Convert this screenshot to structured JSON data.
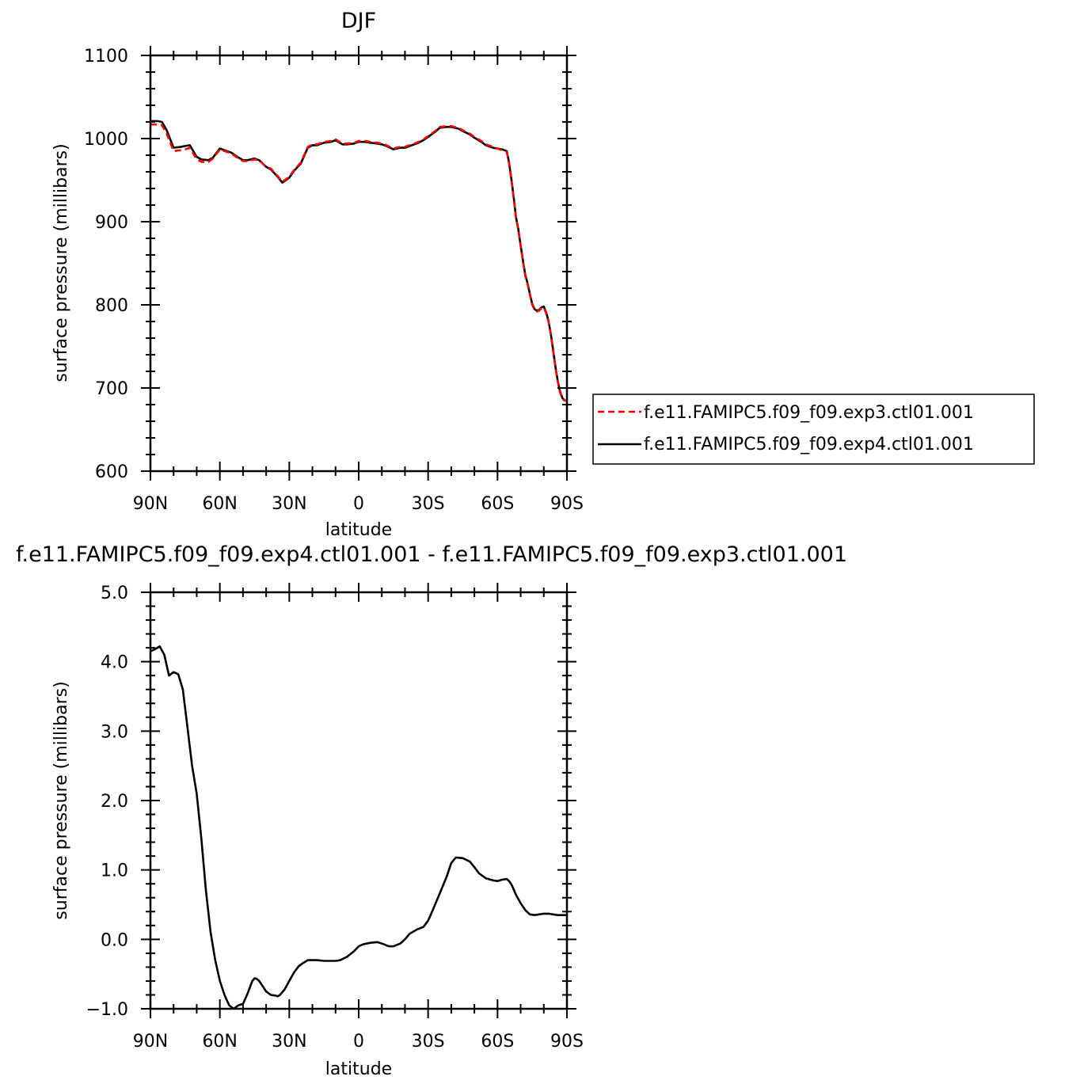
{
  "chart_data": [
    {
      "type": "line",
      "title": "DJF",
      "xlabel": "latitude",
      "ylabel": "surface pressure (millibars)",
      "xlim": [
        90,
        -90
      ],
      "ylim": [
        600,
        1100
      ],
      "xticks": [
        {
          "value": 90,
          "label": "90N"
        },
        {
          "value": 60,
          "label": "60N"
        },
        {
          "value": 30,
          "label": "30N"
        },
        {
          "value": 0,
          "label": "0"
        },
        {
          "value": -30,
          "label": "30S"
        },
        {
          "value": -60,
          "label": "60S"
        },
        {
          "value": -90,
          "label": "90S"
        }
      ],
      "yticks": [
        {
          "value": 600,
          "label": "600"
        },
        {
          "value": 700,
          "label": "700"
        },
        {
          "value": 800,
          "label": "800"
        },
        {
          "value": 900,
          "label": "900"
        },
        {
          "value": 1000,
          "label": "1000"
        },
        {
          "value": 1100,
          "label": "1100"
        }
      ],
      "legend_position": "right",
      "series": [
        {
          "name": "f.e11.FAMIPC5.f09_f09.exp3.ctl01.001",
          "color": "#ff0000",
          "style": "dashed",
          "x": [
            90,
            87,
            85,
            83,
            80,
            77,
            75,
            73,
            70,
            68,
            65,
            63,
            60,
            58,
            55,
            53,
            50,
            48,
            45,
            43,
            40,
            38,
            35,
            33,
            30,
            28,
            25,
            22,
            20,
            18,
            15,
            12,
            10,
            7,
            5,
            2,
            0,
            -3,
            -5,
            -8,
            -10,
            -12,
            -15,
            -18,
            -20,
            -23,
            -25,
            -28,
            -30,
            -33,
            -35,
            -38,
            -40,
            -43,
            -45,
            -48,
            -50,
            -53,
            -55,
            -58,
            -60,
            -62,
            -64,
            -65,
            -66,
            -67,
            -68,
            -69,
            -70,
            -71,
            -72,
            -73,
            -74,
            -75,
            -76,
            -77,
            -78,
            -79,
            -80,
            -81,
            -82,
            -83,
            -84,
            -85,
            -86,
            -87,
            -88,
            -89,
            -90
          ],
          "y": [
            1017,
            1017,
            1016,
            1006,
            985,
            986,
            987,
            989,
            975,
            972,
            972,
            976,
            987,
            985,
            982,
            978,
            973,
            973,
            975,
            974,
            966,
            964,
            955,
            948,
            954,
            962,
            971,
            990,
            993,
            993,
            996,
            997,
            999,
            994,
            994,
            995,
            997,
            997,
            996,
            995,
            994,
            992,
            988,
            990,
            990,
            993,
            995,
            999,
            1003,
            1009,
            1014,
            1015,
            1015,
            1013,
            1010,
            1006,
            1002,
            997,
            993,
            990,
            988,
            986,
            984,
            970,
            950,
            928,
            904,
            890,
            870,
            852,
            835,
            825,
            812,
            800,
            794,
            792,
            793,
            796,
            797,
            790,
            780,
            765,
            745,
            725,
            708,
            695,
            687,
            685,
            685
          ]
        },
        {
          "name": "f.e11.FAMIPC5.f09_f09.exp4.ctl01.001",
          "color": "#000000",
          "style": "solid",
          "x": [
            90,
            87,
            85,
            83,
            80,
            77,
            75,
            73,
            70,
            68,
            65,
            63,
            60,
            58,
            55,
            53,
            50,
            48,
            45,
            43,
            40,
            38,
            35,
            33,
            30,
            28,
            25,
            22,
            20,
            18,
            15,
            12,
            10,
            7,
            5,
            2,
            0,
            -3,
            -5,
            -8,
            -10,
            -12,
            -15,
            -18,
            -20,
            -23,
            -25,
            -28,
            -30,
            -33,
            -35,
            -38,
            -40,
            -43,
            -45,
            -48,
            -50,
            -53,
            -55,
            -58,
            -60,
            -62,
            -64,
            -65,
            -66,
            -67,
            -68,
            -69,
            -70,
            -71,
            -72,
            -73,
            -74,
            -75,
            -76,
            -77,
            -78,
            -79,
            -80,
            -81,
            -82,
            -83,
            -84,
            -85,
            -86,
            -87,
            -88,
            -89,
            -90
          ],
          "y": [
            1021,
            1021,
            1020,
            1010,
            989,
            990,
            991,
            992,
            978,
            975,
            974,
            977,
            988,
            986,
            983,
            979,
            974,
            974,
            976,
            974,
            966,
            963,
            954,
            947,
            953,
            961,
            970,
            989,
            992,
            992,
            995,
            996,
            998,
            993,
            993,
            994,
            996,
            996,
            995,
            994,
            993,
            991,
            987,
            989,
            989,
            992,
            994,
            998,
            1002,
            1008,
            1013,
            1014,
            1014,
            1012,
            1009,
            1005,
            1001,
            996,
            992,
            989,
            988,
            987,
            985,
            971,
            951,
            929,
            905,
            891,
            871,
            853,
            836,
            826,
            813,
            801,
            795,
            793,
            794,
            797,
            798,
            791,
            781,
            766,
            746,
            726,
            709,
            696,
            688,
            685,
            685
          ]
        }
      ]
    },
    {
      "type": "line",
      "title": "f.e11.FAMIPC5.f09_f09.exp4.ctl01.001 - f.e11.FAMIPC5.f09_f09.exp3.ctl01.001",
      "xlabel": "latitude",
      "ylabel": "surface pressure (millibars)",
      "xlim": [
        90,
        -90
      ],
      "ylim": [
        -1.0,
        5.0
      ],
      "xticks": [
        {
          "value": 90,
          "label": "90N"
        },
        {
          "value": 60,
          "label": "60N"
        },
        {
          "value": 30,
          "label": "30N"
        },
        {
          "value": 0,
          "label": "0"
        },
        {
          "value": -30,
          "label": "30S"
        },
        {
          "value": -60,
          "label": "60S"
        },
        {
          "value": -90,
          "label": "90S"
        }
      ],
      "yticks": [
        {
          "value": -1.0,
          "label": "−1.0"
        },
        {
          "value": 0.0,
          "label": "0.0"
        },
        {
          "value": 1.0,
          "label": "1.0"
        },
        {
          "value": 2.0,
          "label": "2.0"
        },
        {
          "value": 3.0,
          "label": "3.0"
        },
        {
          "value": 4.0,
          "label": "4.0"
        },
        {
          "value": 5.0,
          "label": "5.0"
        }
      ],
      "series": [
        {
          "color": "#000000",
          "style": "solid",
          "x": [
            90,
            88,
            86,
            84,
            82,
            80,
            78,
            76,
            74,
            72,
            70,
            68,
            66,
            64,
            62,
            60,
            58,
            56,
            54,
            52,
            50,
            48,
            46,
            45,
            44,
            43,
            42,
            40,
            38,
            36,
            35,
            34,
            32,
            30,
            28,
            26,
            24,
            22,
            20,
            18,
            15,
            12,
            10,
            8,
            5,
            2,
            0,
            -2,
            -5,
            -8,
            -10,
            -13,
            -15,
            -18,
            -20,
            -22,
            -25,
            -28,
            -30,
            -32,
            -35,
            -38,
            -40,
            -42,
            -45,
            -48,
            -50,
            -52,
            -55,
            -58,
            -60,
            -62,
            -64,
            -65,
            -66,
            -67,
            -68,
            -70,
            -72,
            -74,
            -76,
            -78,
            -80,
            -82,
            -84,
            -86,
            -88,
            -90
          ],
          "y": [
            4.15,
            4.18,
            4.22,
            4.1,
            3.8,
            3.85,
            3.82,
            3.6,
            3.05,
            2.5,
            2.1,
            1.45,
            0.7,
            0.1,
            -0.3,
            -0.6,
            -0.8,
            -0.95,
            -1.0,
            -0.95,
            -0.93,
            -0.78,
            -0.6,
            -0.56,
            -0.57,
            -0.6,
            -0.65,
            -0.75,
            -0.8,
            -0.81,
            -0.82,
            -0.8,
            -0.72,
            -0.6,
            -0.48,
            -0.39,
            -0.34,
            -0.3,
            -0.3,
            -0.3,
            -0.31,
            -0.31,
            -0.31,
            -0.3,
            -0.25,
            -0.17,
            -0.1,
            -0.07,
            -0.05,
            -0.04,
            -0.06,
            -0.1,
            -0.1,
            -0.06,
            0.0,
            0.08,
            0.14,
            0.18,
            0.27,
            0.42,
            0.66,
            0.9,
            1.1,
            1.18,
            1.17,
            1.12,
            1.04,
            0.95,
            0.88,
            0.85,
            0.84,
            0.86,
            0.87,
            0.84,
            0.79,
            0.72,
            0.64,
            0.52,
            0.42,
            0.36,
            0.35,
            0.36,
            0.37,
            0.37,
            0.36,
            0.35,
            0.35,
            0.35
          ]
        }
      ]
    }
  ]
}
